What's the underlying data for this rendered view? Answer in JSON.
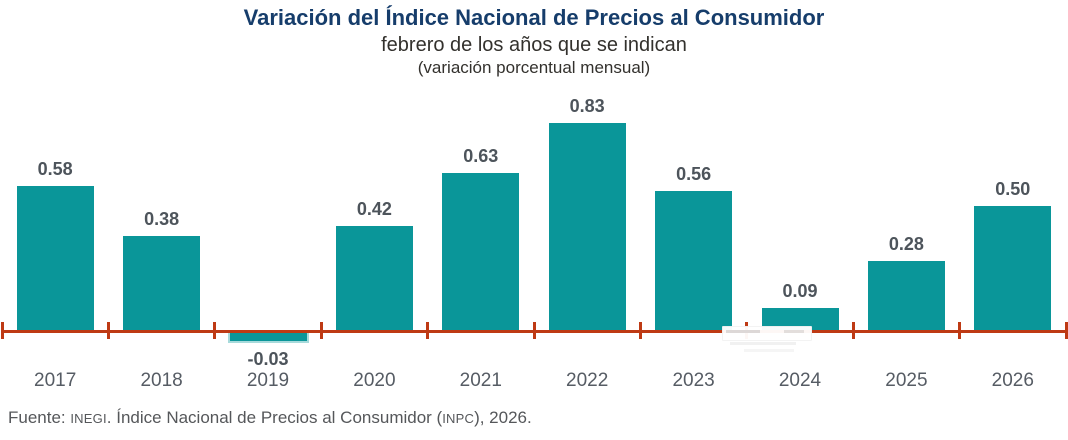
{
  "header": {
    "title": "Variación del Índice Nacional de Precios al Consumidor",
    "subtitle1": "febrero de los años que se indican",
    "subtitle2": "(variación porcentual mensual)"
  },
  "chart_data": {
    "type": "bar",
    "title": "Variación del Índice Nacional de Precios al Consumidor",
    "subtitle": "febrero de los años que se indican",
    "units_note": "(variación porcentual mensual)",
    "categories": [
      "2017",
      "2018",
      "2019",
      "2020",
      "2021",
      "2022",
      "2023",
      "2024",
      "2025",
      "2026"
    ],
    "values": [
      0.58,
      0.38,
      -0.03,
      0.42,
      0.63,
      0.83,
      0.56,
      0.09,
      0.28,
      0.5
    ],
    "value_labels": [
      "0.58",
      "0.38",
      "-0.03",
      "0.42",
      "0.63",
      "0.83",
      "0.56",
      "0.09",
      "0.28",
      "0.50"
    ],
    "xlabel": "",
    "ylabel": "",
    "ylim": [
      -0.1,
      0.9
    ],
    "grid": false,
    "legend": "none",
    "data_labels": true,
    "bar_color": "#0A9699",
    "axis_color": "#BE3A14",
    "label_color": "#4D545B",
    "tick_label_color": "#565C64"
  },
  "footer": {
    "parts": [
      {
        "text": "Fuente: ",
        "small": false
      },
      {
        "text": "INEGI",
        "small": true
      },
      {
        "text": ". Índice Nacional de Precios al Consumidor (",
        "small": false
      },
      {
        "text": "INPC",
        "small": true
      },
      {
        "text": "), 2026.",
        "small": false
      }
    ]
  }
}
